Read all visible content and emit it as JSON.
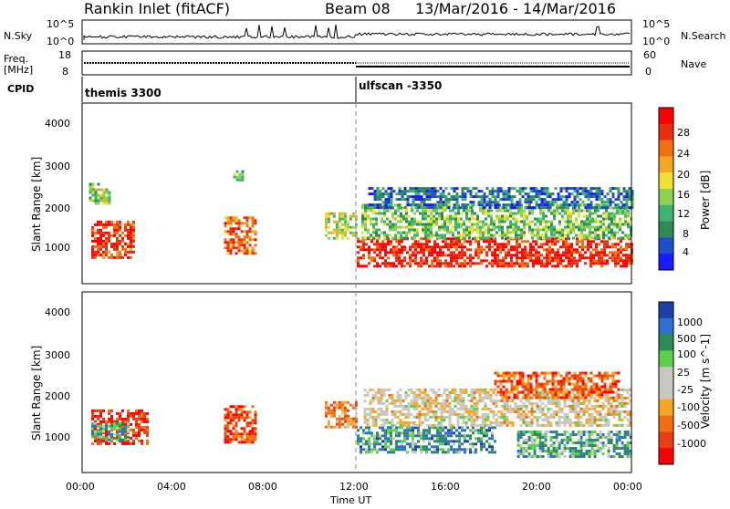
{
  "header": {
    "station": "Rankin Inlet (fitACF)",
    "beam": "Beam 08",
    "dates": "13/Mar/2016 - 14/Mar/2016"
  },
  "top_panel": {
    "left_label": "N.Sky",
    "right_label": "N.Search",
    "left_ticks": [
      "10^5",
      "10^0"
    ],
    "right_ticks": [
      "10^5",
      "10^0"
    ]
  },
  "freq_panel": {
    "left_label_1": "Freq.",
    "left_label_2": "[MHz]",
    "right_label": "Nave",
    "left_ticks": [
      "18",
      "8"
    ],
    "right_ticks": [
      "60",
      "0"
    ]
  },
  "cpid": {
    "label": "CPID",
    "segments": [
      {
        "name": "themis 3300",
        "start_hour": 0
      },
      {
        "name": "ulfscan -3350",
        "start_hour": 12
      }
    ]
  },
  "colors": {
    "power_scale": [
      "#1a1aff",
      "#1f4fc8",
      "#2e8b57",
      "#3cb371",
      "#8fd14f",
      "#f0e030",
      "#f5a623",
      "#f07010",
      "#e83010",
      "#ff0000"
    ],
    "velocity_scale": [
      "#1f3fa8",
      "#2f6fd0",
      "#2e8b57",
      "#5bd04a",
      "#c8c8c0",
      "#c8c8c0",
      "#f5a623",
      "#f07010",
      "#e84010",
      "#ff0000"
    ],
    "ground_scatter": "#c8c8c0"
  },
  "chart_data": [
    {
      "type": "heatmap",
      "name": "power",
      "ylabel": "Slant Range [km]",
      "ylim": [
        200,
        4500
      ],
      "yticks": [
        "4000",
        "3000",
        "2000",
        "1000"
      ],
      "xlim": [
        0,
        24
      ],
      "colorbar_label": "Power [dB]",
      "colorbar_ticks": [
        "28",
        "24",
        "20",
        "16",
        "12",
        "8",
        "4"
      ],
      "regions": [
        {
          "t0": 0.4,
          "t1": 2.2,
          "r0": 850,
          "r1": 1700,
          "level": 0.85
        },
        {
          "t0": 0.3,
          "t1": 1.2,
          "r0": 2100,
          "r1": 2600,
          "level": 0.45
        },
        {
          "t0": 6.2,
          "t1": 7.6,
          "r0": 950,
          "r1": 1800,
          "level": 0.75
        },
        {
          "t0": 6.6,
          "t1": 7.0,
          "r0": 2700,
          "r1": 2900,
          "level": 0.4
        },
        {
          "t0": 10.6,
          "t1": 12.0,
          "r0": 1300,
          "r1": 1900,
          "level": 0.5
        },
        {
          "t0": 12.0,
          "t1": 24.0,
          "r0": 600,
          "r1": 1300,
          "level": 0.9
        },
        {
          "t0": 12.2,
          "t1": 24.0,
          "r0": 1300,
          "r1": 2100,
          "level": 0.4
        },
        {
          "t0": 12.5,
          "t1": 24.0,
          "r0": 2000,
          "r1": 2500,
          "level": 0.2
        }
      ]
    },
    {
      "type": "heatmap",
      "name": "velocity",
      "ylabel": "Slant Range [km]",
      "ylim": [
        200,
        4500
      ],
      "yticks": [
        "4000",
        "3000",
        "2000",
        "1000"
      ],
      "xlim": [
        0,
        24
      ],
      "xticks": [
        "00:00",
        "04:00",
        "08:00",
        "12:00",
        "16:00",
        "20:00",
        "00:00"
      ],
      "xlabel": "Time UT",
      "colorbar_label": "Velocity [m s^-1]",
      "colorbar_ticks": [
        "1000",
        "500",
        "100",
        "25",
        "-25",
        "-100",
        "-500",
        "-1000"
      ],
      "regions": [
        {
          "t0": 0.4,
          "t1": 2.8,
          "r0": 900,
          "r1": 1700,
          "level": 0.1
        },
        {
          "t0": 0.4,
          "t1": 2.0,
          "r0": 1000,
          "r1": 1400,
          "level": 0.7
        },
        {
          "t0": 6.2,
          "t1": 7.6,
          "r0": 950,
          "r1": 1800,
          "level": 0.15
        },
        {
          "t0": 10.6,
          "t1": 12.0,
          "r0": 1300,
          "r1": 1900,
          "level": 0.3
        },
        {
          "t0": 12.0,
          "t1": 18.0,
          "r0": 700,
          "r1": 1300,
          "level": 0.75
        },
        {
          "t0": 12.3,
          "t1": 24.0,
          "r0": 1300,
          "r1": 2200,
          "level": 0.45
        },
        {
          "t0": 19.0,
          "t1": 24.0,
          "r0": 600,
          "r1": 1200,
          "level": 0.7
        },
        {
          "t0": 18.0,
          "t1": 23.5,
          "r0": 2000,
          "r1": 2600,
          "level": 0.2
        }
      ]
    }
  ]
}
